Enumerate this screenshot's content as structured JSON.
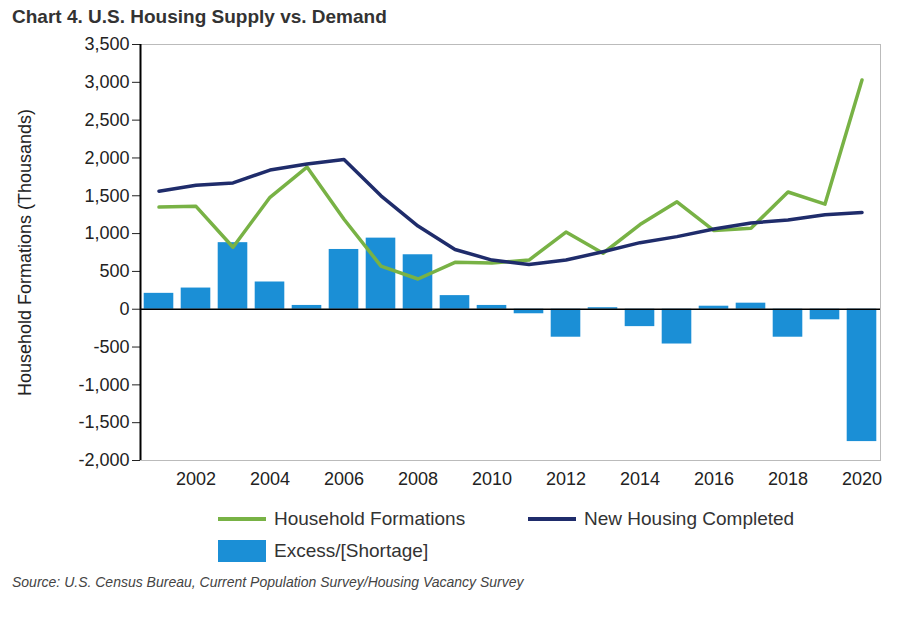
{
  "chart_data": {
    "type": "combo",
    "title": "Chart 4. U.S. Housing Supply vs. Demand",
    "ylabel": "Household Formations (Thousands)",
    "source": "Source: U.S. Census Bureau, Current Population Survey/Housing Vacancy Survey",
    "x": [
      2001,
      2002,
      2003,
      2004,
      2005,
      2006,
      2007,
      2008,
      2009,
      2010,
      2011,
      2012,
      2013,
      2014,
      2015,
      2016,
      2017,
      2018,
      2019,
      2020
    ],
    "xlim": [
      2000.5,
      2020.5
    ],
    "xticks": [
      2002,
      2004,
      2006,
      2008,
      2010,
      2012,
      2014,
      2016,
      2018,
      2020
    ],
    "ylim": [
      -2000,
      3500
    ],
    "yticks": [
      {
        "value": -2000,
        "label": "-2,000"
      },
      {
        "value": -1500,
        "label": "-1,500"
      },
      {
        "value": -1000,
        "label": "-1,000"
      },
      {
        "value": -500,
        "label": "-500"
      },
      0,
      500,
      {
        "value": 1000,
        "label": "1,000"
      },
      {
        "value": 1500,
        "label": "1,500"
      },
      {
        "value": 2000,
        "label": "2,000"
      },
      {
        "value": 2500,
        "label": "2,500"
      },
      {
        "value": 3000,
        "label": "3,000"
      },
      {
        "value": 3500,
        "label": "3,500"
      }
    ],
    "grid": false,
    "legend": "bottom",
    "series": [
      {
        "name": "Household Formations",
        "type": "line",
        "color": "#78b245",
        "values": [
          1350,
          1360,
          820,
          1480,
          1880,
          1190,
          570,
          400,
          620,
          610,
          650,
          1020,
          740,
          1120,
          1420,
          1040,
          1070,
          1550,
          1390,
          3030
        ]
      },
      {
        "name": "New Housing Completed",
        "type": "line",
        "color": "#1f2c6b",
        "values": [
          1560,
          1640,
          1670,
          1840,
          1920,
          1980,
          1500,
          1100,
          790,
          650,
          590,
          650,
          760,
          880,
          960,
          1060,
          1140,
          1180,
          1250,
          1280
        ]
      },
      {
        "name": "Excess/[Shortage]",
        "type": "bar",
        "color": "#1b8fd6",
        "values": [
          210,
          280,
          880,
          360,
          50,
          790,
          940,
          720,
          180,
          50,
          -60,
          -370,
          20,
          -230,
          -460,
          40,
          80,
          -370,
          -140,
          -1750
        ]
      }
    ]
  }
}
